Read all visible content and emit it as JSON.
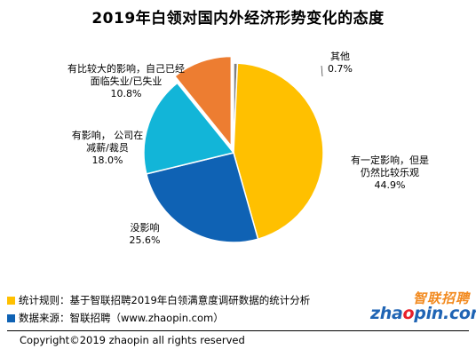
{
  "title": "2019年白领对国内外经济形势变化的态度",
  "chart_data": {
    "type": "pie",
    "title": "2019年白领对国内外经济形势变化的态度",
    "slices": [
      {
        "lines": [
          "其他"
        ],
        "value_label": "0.7%",
        "value": 0.7,
        "color": "#7f7f7f",
        "exploded": false
      },
      {
        "lines": [
          "有一定影响，但是",
          "仍然比较乐观"
        ],
        "value_label": "44.9%",
        "value": 44.9,
        "color": "#ffc000",
        "exploded": false
      },
      {
        "lines": [
          "没影响"
        ],
        "value_label": "25.6%",
        "value": 25.6,
        "color": "#0f62b4",
        "exploded": false
      },
      {
        "lines": [
          "有影响， 公司在",
          "减薪/裁员"
        ],
        "value_label": "18.0%",
        "value": 18.0,
        "color": "#12b5d8",
        "exploded": false
      },
      {
        "lines": [
          "有比较大的影响，自己已经",
          "面临失业/已失业"
        ],
        "value_label": "10.8%",
        "value": 10.8,
        "color": "#ed7d31",
        "exploded": true
      }
    ]
  },
  "notes": [
    {
      "text": "统计规则：基于智联招聘2019年白领满意度调研数据的统计分析",
      "color": "#ffc000"
    },
    {
      "text": "数据来源：智联招聘（www.zhaopin.com）",
      "color": "#0f62b4"
    }
  ],
  "logo": {
    "cn": "智联招聘",
    "en_prefix": "zha",
    "en_o": "o",
    "en_suffix": "pin.com"
  },
  "copyright": "Copyright©2019 zhaopin all rights reserved"
}
